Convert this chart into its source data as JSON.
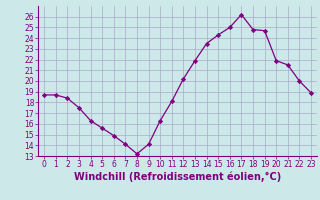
{
  "x": [
    0,
    1,
    2,
    3,
    4,
    5,
    6,
    7,
    8,
    9,
    10,
    11,
    12,
    13,
    14,
    15,
    16,
    17,
    18,
    19,
    20,
    21,
    22,
    23
  ],
  "y": [
    18.7,
    18.7,
    18.4,
    17.5,
    16.3,
    15.6,
    14.9,
    14.1,
    13.2,
    14.1,
    16.3,
    18.1,
    20.2,
    21.9,
    23.5,
    24.3,
    25.0,
    26.2,
    24.8,
    24.7,
    21.9,
    21.5,
    20.0,
    18.9
  ],
  "line_color": "#800080",
  "marker": "D",
  "marker_size": 2.2,
  "ylim": [
    13,
    27
  ],
  "xlim": [
    -0.5,
    23.5
  ],
  "yticks": [
    13,
    14,
    15,
    16,
    17,
    18,
    19,
    20,
    21,
    22,
    23,
    24,
    25,
    26
  ],
  "xticks": [
    0,
    1,
    2,
    3,
    4,
    5,
    6,
    7,
    8,
    9,
    10,
    11,
    12,
    13,
    14,
    15,
    16,
    17,
    18,
    19,
    20,
    21,
    22,
    23
  ],
  "xlabel": "Windchill (Refroidissement éolien,°C)",
  "background_color": "#cce8e8",
  "grid_color": "#aaaacc",
  "tick_fontsize": 5.5,
  "label_fontsize": 7.0
}
